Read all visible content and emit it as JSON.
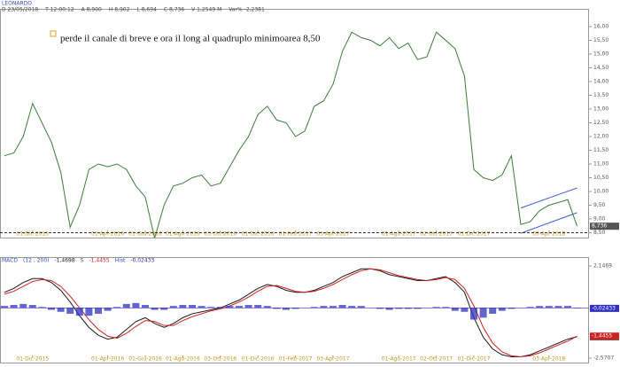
{
  "chart_data": [
    {
      "type": "line",
      "title": "LEONARDO",
      "header": [
        "D 23/05/2018",
        "T 12:00:12",
        "A 8,900",
        "H 8,902",
        "L 8,694",
        "C 8,736",
        "V 1,2549 M",
        "Var% -2,2381"
      ],
      "annotation": "perde il canale di breve e ora il long al quadruplo minimoarea 8,50",
      "categories": [
        null,
        null,
        null,
        "01-Dic-2015",
        null,
        null,
        null,
        null,
        null,
        null,
        null,
        "01-Apr-2016",
        null,
        null,
        null,
        "01-Giu-2016",
        null,
        null,
        null,
        "01-Ago-2016",
        null,
        null,
        null,
        "03-Ott-2016",
        null,
        null,
        null,
        "01-Dic-2016",
        null,
        null,
        null,
        "01-Feb-2017",
        null,
        null,
        null,
        "03-Apr-2017",
        null,
        null,
        null,
        null,
        null,
        null,
        "01-Ago-2017",
        null,
        null,
        null,
        "02-Ott-2017",
        null,
        null,
        null,
        "01-Dic-2017",
        null,
        null,
        null,
        null,
        null,
        null,
        null,
        "03-Apr-2018",
        null,
        null,
        null
      ],
      "values": [
        11.3,
        11.4,
        12.0,
        13.2,
        12.5,
        11.8,
        10.7,
        8.7,
        9.5,
        10.8,
        11.0,
        10.9,
        11.0,
        10.8,
        10.2,
        9.8,
        8.3,
        9.5,
        10.2,
        10.3,
        10.5,
        10.6,
        10.2,
        10.3,
        10.9,
        11.5,
        12.0,
        12.8,
        13.1,
        12.6,
        12.5,
        12.0,
        12.2,
        13.1,
        13.3,
        13.9,
        15.1,
        15.8,
        15.6,
        15.5,
        15.3,
        15.6,
        15.2,
        15.4,
        14.8,
        14.9,
        15.8,
        15.5,
        15.2,
        14.2,
        10.8,
        10.5,
        10.4,
        10.6,
        11.3,
        8.8,
        8.9,
        9.3,
        9.5,
        9.6,
        9.7,
        8.736
      ],
      "color": "#3b7d3b",
      "last_label": "8,736",
      "hline": 8.5,
      "channel": {
        "from": 55,
        "to": 61,
        "upper": [
          9.4,
          10.13
        ],
        "lower": [
          8.48,
          9.23
        ],
        "color": "#3f5fd0"
      },
      "ylim": [
        8,
        16.6
      ],
      "yticks": [
        {
          "value": 8.5,
          "label": "8,50"
        },
        {
          "value": 9,
          "label": "9,00"
        },
        {
          "value": 9.5,
          "label": "9,50"
        },
        {
          "value": 10,
          "label": "10,00"
        },
        {
          "value": 10.5,
          "label": "10,50"
        },
        {
          "value": 11,
          "label": "11,00"
        },
        {
          "value": 11.5,
          "label": "11,50"
        },
        {
          "value": 12,
          "label": "12,00"
        },
        {
          "value": 12.5,
          "label": "12,50"
        },
        {
          "value": 13,
          "label": "13,00"
        },
        {
          "value": 13.5,
          "label": "13,50"
        },
        {
          "value": 14,
          "label": "14,00"
        },
        {
          "value": 14.5,
          "label": "14,50"
        },
        {
          "value": 15,
          "label": "15,00"
        },
        {
          "value": 15.5,
          "label": "15,50"
        },
        {
          "value": 16,
          "label": "16,00"
        }
      ]
    },
    {
      "type": "line",
      "params": "(12 , 200)",
      "categories": [
        null,
        null,
        null,
        "01-Dic-2015",
        null,
        null,
        null,
        null,
        null,
        null,
        null,
        "01-Apr-2016",
        null,
        null,
        null,
        "01-Giu-2016",
        null,
        null,
        null,
        "01-Ago-2016",
        null,
        null,
        null,
        "03-Ott-2016",
        null,
        null,
        null,
        "01-Dic-2016",
        null,
        null,
        null,
        "01-Feb-2017",
        null,
        null,
        null,
        "03-Apr-2017",
        null,
        null,
        null,
        null,
        null,
        null,
        "01-Ago-2017",
        null,
        null,
        null,
        "02-Ott-2017",
        null,
        null,
        null,
        "01-Dic-2017",
        null,
        null,
        null,
        null,
        null,
        null,
        null,
        "03-Apr-2018",
        null,
        null,
        null
      ],
      "series": [
        {
          "name": "MACD",
          "type": "line",
          "color": "#1a1a1a",
          "last_label": "-1,4698",
          "values": [
            0.8,
            1.0,
            1.3,
            1.5,
            1.5,
            1.3,
            0.9,
            0.3,
            -0.4,
            -1.0,
            -1.4,
            -1.6,
            -1.5,
            -1.1,
            -0.7,
            -0.5,
            -0.8,
            -1.0,
            -0.8,
            -0.5,
            -0.3,
            -0.2,
            -0.1,
            0.0,
            0.2,
            0.4,
            0.7,
            1.0,
            1.2,
            1.1,
            0.9,
            0.8,
            0.8,
            0.9,
            1.1,
            1.3,
            1.6,
            1.8,
            2.0,
            2.0,
            1.9,
            1.7,
            1.6,
            1.5,
            1.4,
            1.4,
            1.5,
            1.6,
            1.3,
            0.8,
            -0.5,
            -1.5,
            -2.1,
            -2.4,
            -2.5,
            -2.5,
            -2.4,
            -2.2,
            -2.0,
            -1.8,
            -1.6,
            -1.4698
          ]
        },
        {
          "name": "S",
          "type": "line",
          "color": "#d02020",
          "last_label": "-1,4455",
          "values": [
            0.7,
            0.85,
            1.1,
            1.35,
            1.45,
            1.4,
            1.1,
            0.6,
            0.0,
            -0.6,
            -1.1,
            -1.45,
            -1.55,
            -1.3,
            -0.95,
            -0.65,
            -0.7,
            -0.9,
            -0.9,
            -0.65,
            -0.45,
            -0.3,
            -0.15,
            -0.05,
            0.1,
            0.3,
            0.55,
            0.85,
            1.1,
            1.15,
            1.0,
            0.85,
            0.8,
            0.85,
            1.0,
            1.2,
            1.45,
            1.7,
            1.9,
            2.0,
            1.95,
            1.8,
            1.65,
            1.55,
            1.45,
            1.4,
            1.45,
            1.55,
            1.45,
            1.0,
            0.1,
            -1.0,
            -1.8,
            -2.25,
            -2.45,
            -2.5,
            -2.45,
            -2.3,
            -2.1,
            -1.9,
            -1.7,
            -1.4455
          ]
        },
        {
          "name": "Hist",
          "type": "bar",
          "color": "#3030c0",
          "last_label": "-0,02433",
          "values": [
            0.1,
            0.15,
            0.2,
            0.15,
            0.05,
            -0.1,
            -0.2,
            -0.3,
            -0.4,
            -0.4,
            -0.3,
            -0.15,
            0.05,
            0.2,
            0.25,
            0.15,
            -0.1,
            -0.1,
            0.1,
            0.15,
            0.15,
            0.1,
            0.05,
            0.05,
            0.1,
            0.1,
            0.15,
            0.15,
            0.1,
            -0.05,
            -0.1,
            -0.05,
            0,
            0.05,
            0.1,
            0.1,
            0.15,
            0.1,
            0.1,
            0,
            -0.05,
            -0.1,
            -0.05,
            -0.05,
            -0.05,
            0,
            0.05,
            0.05,
            -0.15,
            -0.2,
            -0.6,
            -0.5,
            -0.3,
            -0.15,
            -0.05,
            0,
            0.05,
            0.1,
            0.1,
            0.1,
            0.1,
            -0.02433
          ]
        }
      ],
      "ylim": [
        -2.5707,
        2.1469
      ],
      "yticks": [
        {
          "value": 2.1469,
          "label": "2,1469"
        },
        {
          "value": -2.5707,
          "label": "-2,5707"
        }
      ]
    }
  ]
}
